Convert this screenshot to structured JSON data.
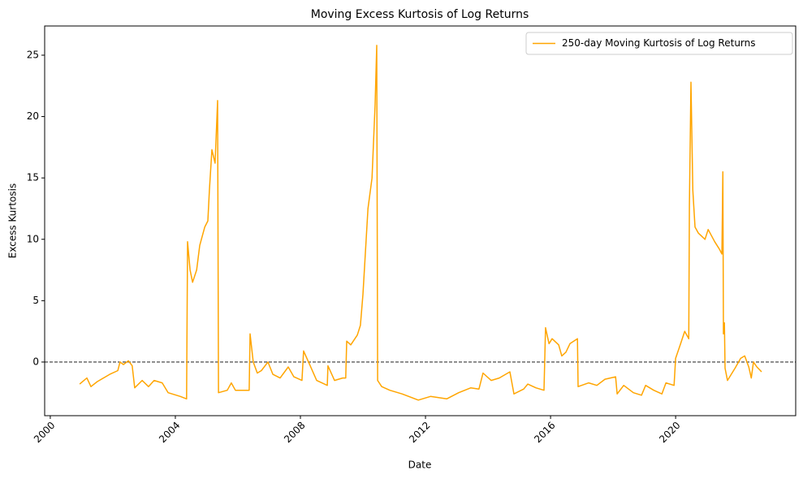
{
  "chart_data": {
    "type": "line",
    "title": "Moving Excess Kurtosis of Log Returns",
    "x_label": "Date",
    "y_label": "Excess Kurtosis",
    "x": [
      2000.94,
      2001.17,
      2001.3,
      2001.5,
      2001.9,
      2002.16,
      2002.23,
      2002.34,
      2002.5,
      2002.62,
      2002.7,
      2002.94,
      2003.14,
      2003.32,
      2003.58,
      2003.77,
      2004.16,
      2004.36,
      2004.39,
      2004.47,
      2004.55,
      2004.68,
      2004.78,
      2004.94,
      2005.04,
      2005.09,
      2005.17,
      2005.27,
      2005.35,
      2005.38,
      2005.66,
      2005.79,
      2005.92,
      2006.36,
      2006.39,
      2006.49,
      2006.62,
      2006.75,
      2006.96,
      2007.12,
      2007.35,
      2007.61,
      2007.79,
      2008.05,
      2008.1,
      2008.26,
      2008.52,
      2008.86,
      2008.88,
      2009.09,
      2009.35,
      2009.45,
      2009.48,
      2009.61,
      2009.82,
      2009.92,
      2010.0,
      2010.08,
      2010.16,
      2010.29,
      2010.39,
      2010.44,
      2010.47,
      2010.6,
      2010.86,
      2011.25,
      2011.77,
      2012.16,
      2012.68,
      2013.06,
      2013.45,
      2013.71,
      2013.84,
      2014.1,
      2014.36,
      2014.7,
      2014.83,
      2015.14,
      2015.27,
      2015.53,
      2015.79,
      2015.84,
      2015.95,
      2016.05,
      2016.26,
      2016.36,
      2016.49,
      2016.62,
      2016.86,
      2016.88,
      2017.22,
      2017.48,
      2017.74,
      2018.08,
      2018.13,
      2018.34,
      2018.65,
      2018.91,
      2019.04,
      2019.3,
      2019.56,
      2019.69,
      2019.95,
      2020.0,
      2020.16,
      2020.29,
      2020.42,
      2020.44,
      2020.49,
      2020.55,
      2020.62,
      2020.73,
      2020.94,
      2021.04,
      2021.25,
      2021.4,
      2021.48,
      2021.51,
      2021.53,
      2021.56,
      2021.58,
      2021.66,
      2021.9,
      2022.08,
      2022.21,
      2022.34,
      2022.42,
      2022.49,
      2022.6,
      2022.75
    ],
    "series": [
      {
        "name": "250-day Moving Kurtosis of Log Returns",
        "color": "#ffa500",
        "values": [
          -1.8,
          -1.3,
          -2.0,
          -1.6,
          -1.0,
          -0.7,
          0.0,
          -0.2,
          0.1,
          -0.3,
          -2.1,
          -1.5,
          -2.0,
          -1.5,
          -1.7,
          -2.5,
          -2.8,
          -3.0,
          9.8,
          7.5,
          6.5,
          7.5,
          9.5,
          11.0,
          11.5,
          14.0,
          17.3,
          16.2,
          21.3,
          -2.5,
          -2.3,
          -1.7,
          -2.3,
          -2.3,
          2.3,
          0.0,
          -0.9,
          -0.7,
          0.0,
          -1.0,
          -1.3,
          -0.4,
          -1.2,
          -1.5,
          0.9,
          0.0,
          -1.5,
          -1.9,
          -0.3,
          -1.5,
          -1.3,
          -1.3,
          1.7,
          1.4,
          2.2,
          3.0,
          5.5,
          9.0,
          12.5,
          15.0,
          21.0,
          25.8,
          -1.5,
          -2.0,
          -2.3,
          -2.6,
          -3.1,
          -2.8,
          -3.0,
          -2.5,
          -2.1,
          -2.2,
          -0.9,
          -1.5,
          -1.3,
          -0.8,
          -2.6,
          -2.2,
          -1.8,
          -2.1,
          -2.3,
          2.8,
          1.5,
          1.9,
          1.4,
          0.5,
          0.8,
          1.5,
          1.9,
          -2.0,
          -1.7,
          -1.9,
          -1.4,
          -1.2,
          -2.6,
          -1.9,
          -2.5,
          -2.7,
          -1.9,
          -2.3,
          -2.6,
          -1.7,
          -1.9,
          0.3,
          1.5,
          2.5,
          1.9,
          12.8,
          22.8,
          14.0,
          11.0,
          10.5,
          10.0,
          10.8,
          9.8,
          9.2,
          8.8,
          15.5,
          2.3,
          3.2,
          -0.5,
          -1.5,
          -0.5,
          0.3,
          0.5,
          -0.4,
          -1.3,
          0.0,
          -0.4,
          -0.8
        ]
      }
    ],
    "xlim": [
      1999.82,
      2023.84
    ],
    "xticks": [
      2000,
      2004,
      2008,
      2012,
      2016,
      2020
    ],
    "ylim": [
      -4.37,
      27.38
    ],
    "yticks": [
      0,
      5,
      10,
      15,
      20,
      25
    ],
    "hline": 0,
    "legend": "upper right"
  }
}
